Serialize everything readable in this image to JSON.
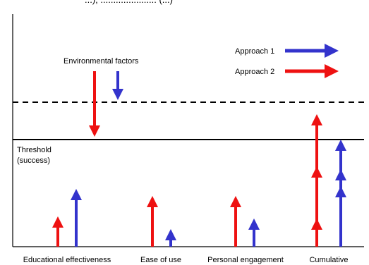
{
  "title_fragment": "...), ...................... (...)",
  "legend": {
    "approach1": {
      "label": "Approach 1",
      "color": "#3333cc"
    },
    "approach2": {
      "label": "Approach 2",
      "color": "#ee1111"
    }
  },
  "labels": {
    "environmental_factors": "Environmental factors",
    "threshold_line1": "Threshold",
    "threshold_line2": "(success)"
  },
  "categories": [
    {
      "id": "educational-effectiveness",
      "label": "Educational effectiveness"
    },
    {
      "id": "ease-of-use",
      "label": "Ease of use"
    },
    {
      "id": "personal-engagement",
      "label": "Personal engagement"
    },
    {
      "id": "cumulative",
      "label": "Cumulative"
    }
  ],
  "icons": {
    "arrow": "arrow-icon"
  }
}
